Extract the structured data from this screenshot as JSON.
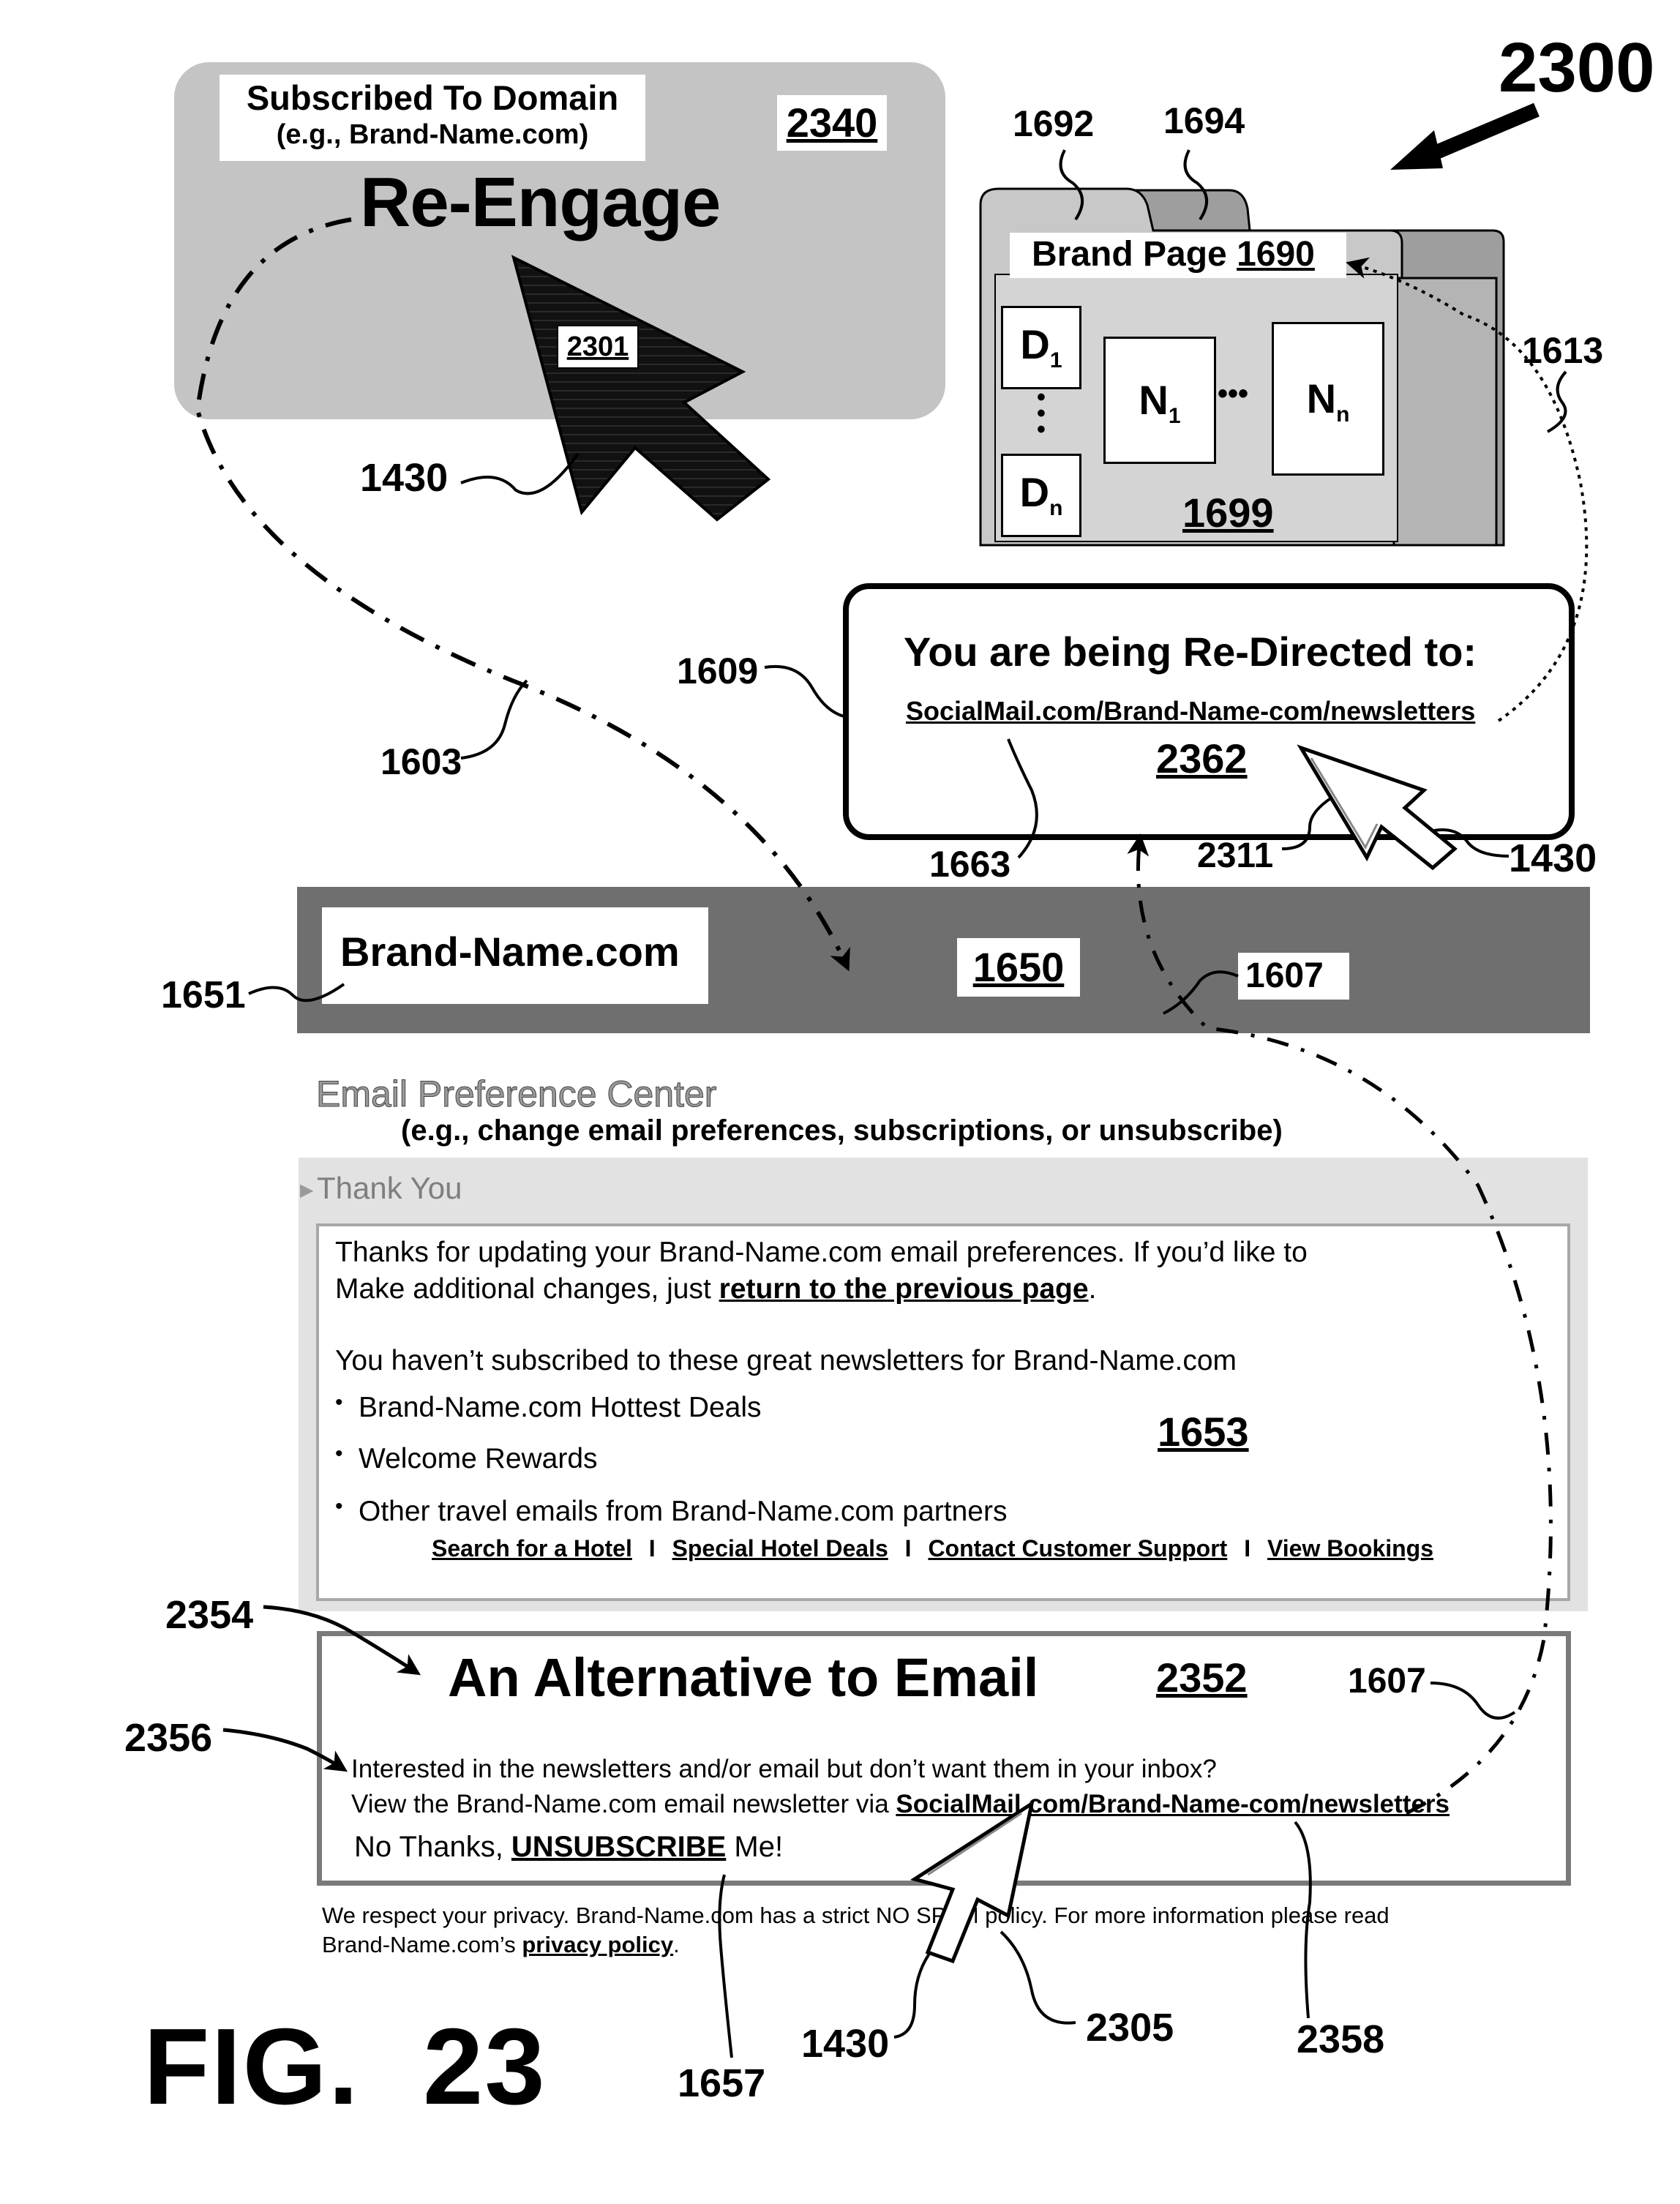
{
  "figure": {
    "number": "2300",
    "label": "FIG.",
    "fig_id": "23"
  },
  "reengage_panel": {
    "subscribed_line1": "Subscribed To Domain",
    "subscribed_line2": "(e.g., Brand-Name.com)",
    "title": "Re-Engage",
    "ref": "2340",
    "cursor_ref": "2301"
  },
  "brand_page": {
    "title": "Brand Page ",
    "ref": "1690",
    "tab_refs": [
      "1692",
      "1694"
    ],
    "d_first": "D",
    "d_first_sub": "1",
    "d_last": "D",
    "d_last_sub": "n",
    "n_first": "N",
    "n_first_sub": "1",
    "n_last": "N",
    "n_last_sub": "n",
    "ellipsis": "•••",
    "content_ref": "1699"
  },
  "redirect": {
    "title": "You are being Re-Directed to:",
    "link": "SocialMail.com/Brand-Name-com/newsletters",
    "ref": "2362"
  },
  "brand_bar": {
    "name": "Brand-Name.com",
    "ref": "1650"
  },
  "email_pref": {
    "title": "Email Preference Center",
    "subtitle": "(e.g., change email preferences, subscriptions, or unsubscribe)",
    "thank_you_label": "Thank You",
    "para1_line1": "Thanks for updating your Brand-Name.com email preferences.  If you’d like to",
    "para1_line2_start": "Make additional changes, just ",
    "para1_link": "return to the previous page",
    "para1_end": ".",
    "para2": "You haven’t subscribed to these great newsletters for Brand-Name.com",
    "bullets": [
      "Brand-Name.com Hottest Deals",
      "Welcome Rewards",
      "Other travel emails from Brand-Name.com partners"
    ],
    "bullet_char": "•",
    "nav_links": [
      "Search for a Hotel",
      "Special Hotel Deals",
      "Contact Customer Support",
      "View Bookings"
    ],
    "nav_sep": "I",
    "ref": "1653"
  },
  "alternative": {
    "title": "An Alternative to Email",
    "ref": "2352",
    "line1": "Interested in the newsletters and/or email but don’t want them in your inbox?",
    "line2_start": "View the Brand-Name.com email newsletter via ",
    "line2_link": "SocialMail.com/Brand-Name-com/newsletters",
    "line3_start": "No Thanks, ",
    "line3_link": "UNSUBSCRIBE",
    "line3_end": " Me!"
  },
  "privacy": {
    "line1": "We respect your privacy.  Brand-Name.com has a strict NO SPAM policy.  For more information please read",
    "line2_start": "Brand-Name.com’s ",
    "line2_link": "privacy policy",
    "line2_end": "."
  },
  "callouts": {
    "c1430a": "1430",
    "c1430b": "1430",
    "c1430c": "1430",
    "c1603": "1603",
    "c1609": "1609",
    "c1613": "1613",
    "c1663": "1663",
    "c2311": "2311",
    "c1651": "1651",
    "c1607a": "1607",
    "c1607b": "1607",
    "c2354": "2354",
    "c2356": "2356",
    "c1657": "1657",
    "c2305": "2305",
    "c2358": "2358"
  },
  "colors": {
    "panel_gray": "#c4c4c4",
    "bar_gray": "#6f6f6f",
    "frame_gray": "#e2e2e2",
    "alt_border": "#7a7a7a"
  }
}
